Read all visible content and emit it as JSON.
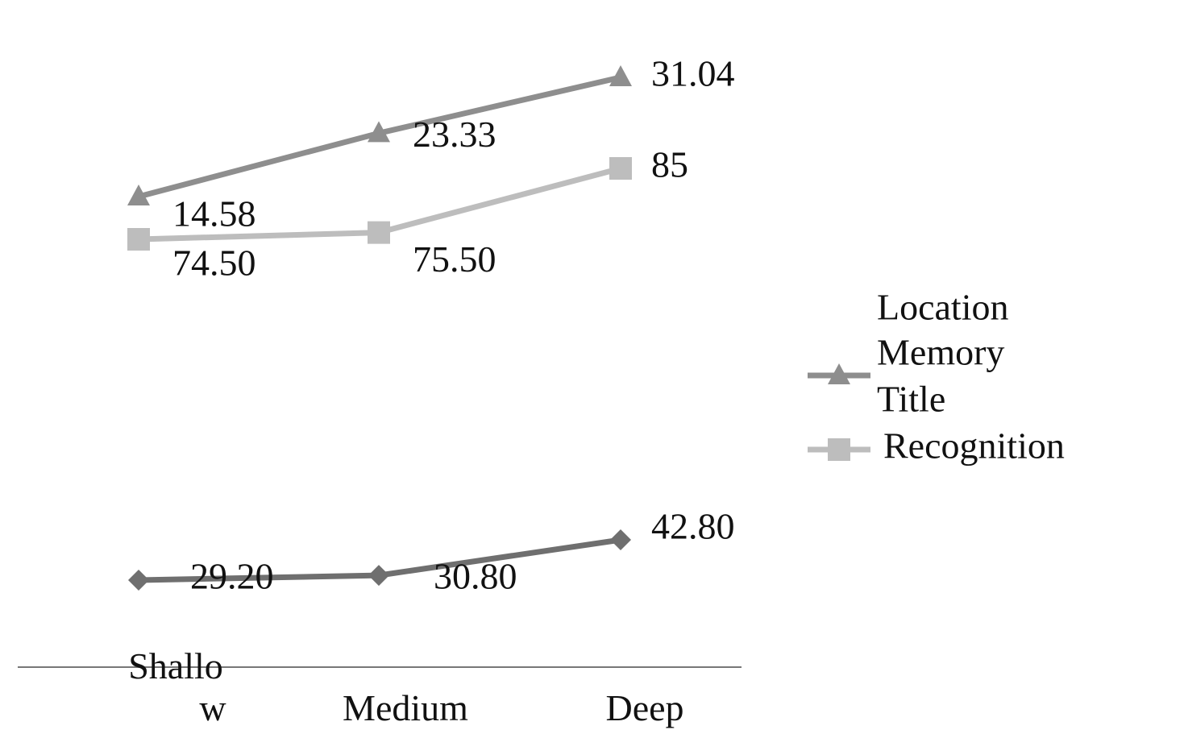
{
  "chart_data": {
    "type": "line",
    "categories": [
      "Shallo w",
      "Medium",
      "Deep"
    ],
    "category_lines": [
      [
        "Shallo",
        "w"
      ],
      [
        "Medium"
      ],
      [
        "Deep"
      ]
    ],
    "series": [
      {
        "name": "Location Memory",
        "name_lines": [
          "Location",
          "Memory"
        ],
        "marker": "triangle",
        "color": "#8e8e8e",
        "values": [
          14.58,
          23.33,
          31.04
        ],
        "labels": [
          "14.58",
          "23.33",
          "31.04"
        ]
      },
      {
        "name": "Title Recognition",
        "name_lines": [
          "Title",
          "Recognition"
        ],
        "marker": "square",
        "color": "#bdbdbd",
        "values": [
          74.5,
          75.5,
          85
        ],
        "labels": [
          "74.50",
          "75.50",
          "85"
        ]
      },
      {
        "name": "",
        "marker": "diamond",
        "color": "#6f6f6f",
        "values": [
          29.2,
          30.8,
          42.8
        ],
        "labels": [
          "29.20",
          "30.80",
          "42.80"
        ]
      }
    ],
    "legend_position": "right",
    "grid": false
  }
}
